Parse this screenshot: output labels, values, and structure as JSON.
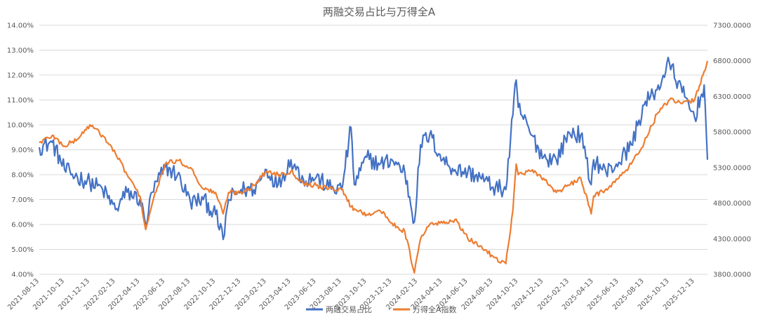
{
  "chart_data": {
    "type": "line",
    "title": "两融交易占比与万得全A",
    "x_tick_labels": [
      "2021-08-13",
      "2021-10-13",
      "2021-12-13",
      "2022-02-13",
      "2022-04-13",
      "2022-06-13",
      "2022-08-13",
      "2022-10-13",
      "2022-12-13",
      "2023-02-13",
      "2023-04-13",
      "2023-06-13",
      "2023-08-13",
      "2023-10-13",
      "2023-12-13",
      "2024-02-13",
      "2024-04-13",
      "2024-06-13",
      "2024-08-13",
      "2024-10-13",
      "2024-12-13",
      "2025-02-13",
      "2025-04-13",
      "2025-06-13",
      "2025-08-13",
      "2025-10-13",
      "2025-12-13"
    ],
    "y_left": {
      "ticks": [
        "4.00%",
        "5.00%",
        "6.00%",
        "7.00%",
        "8.00%",
        "9.00%",
        "10.00%",
        "11.00%",
        "12.00%",
        "13.00%",
        "14.00%"
      ],
      "ylim": [
        4,
        14
      ],
      "unit": "%"
    },
    "y_right": {
      "ticks": [
        "3800.0000",
        "4300.0000",
        "4800.0000",
        "5300.0000",
        "5800.0000",
        "6300.0000",
        "6800.0000",
        "7300.0000"
      ],
      "ylim": [
        3800,
        7300
      ]
    },
    "grid": true,
    "legend_position": "bottom",
    "series": [
      {
        "name": "两融交易占比",
        "axis": "left",
        "color": "#4472C4",
        "x": [
          "2021-08-13",
          "2021-09-13",
          "2021-10-13",
          "2021-11-13",
          "2021-12-13",
          "2022-01-13",
          "2022-02-13",
          "2022-03-13",
          "2022-04-13",
          "2022-04-27",
          "2022-05-13",
          "2022-06-13",
          "2022-07-13",
          "2022-08-13",
          "2022-09-13",
          "2022-10-13",
          "2022-10-31",
          "2022-11-13",
          "2022-12-13",
          "2023-01-13",
          "2023-02-13",
          "2023-03-13",
          "2023-04-13",
          "2023-05-13",
          "2023-06-13",
          "2023-07-13",
          "2023-08-13",
          "2023-09-05",
          "2023-09-13",
          "2023-10-13",
          "2023-11-13",
          "2023-12-13",
          "2024-01-13",
          "2024-02-05",
          "2024-02-20",
          "2024-03-13",
          "2024-04-13",
          "2024-05-13",
          "2024-06-13",
          "2024-07-13",
          "2024-08-13",
          "2024-09-13",
          "2024-09-30",
          "2024-10-08",
          "2024-10-13",
          "2024-11-13",
          "2024-12-13",
          "2025-01-13",
          "2025-02-13",
          "2025-03-13",
          "2025-04-07",
          "2025-04-13",
          "2025-05-13",
          "2025-06-13",
          "2025-07-13",
          "2025-08-13",
          "2025-09-13",
          "2025-10-13",
          "2025-11-13",
          "2025-12-13",
          "2026-01-05",
          "2026-01-13"
        ],
        "y": [
          9.1,
          9.3,
          8.2,
          7.9,
          7.7,
          7.4,
          6.6,
          7.3,
          7.0,
          6.0,
          7.3,
          8.3,
          8.0,
          6.9,
          7.0,
          6.4,
          5.4,
          7.0,
          7.4,
          7.4,
          8.2,
          7.6,
          8.6,
          7.8,
          7.9,
          7.5,
          7.4,
          9.9,
          7.6,
          8.7,
          8.4,
          8.6,
          8.1,
          6.1,
          9.2,
          9.6,
          8.6,
          8.2,
          8.1,
          7.9,
          7.5,
          7.4,
          10.4,
          11.8,
          10.7,
          9.6,
          8.7,
          8.6,
          9.7,
          9.6,
          7.6,
          8.6,
          8.1,
          8.5,
          9.2,
          10.8,
          11.4,
          12.5,
          11.3,
          10.3,
          11.6,
          8.6
        ]
      },
      {
        "name": "万得全A指数",
        "axis": "right",
        "color": "#ED7D31",
        "x": [
          "2021-08-13",
          "2021-09-13",
          "2021-10-13",
          "2021-11-13",
          "2021-12-13",
          "2022-01-13",
          "2022-02-13",
          "2022-03-13",
          "2022-04-13",
          "2022-04-27",
          "2022-05-13",
          "2022-06-13",
          "2022-07-13",
          "2022-08-13",
          "2022-09-13",
          "2022-10-13",
          "2022-10-31",
          "2022-11-13",
          "2022-12-13",
          "2023-01-13",
          "2023-02-13",
          "2023-03-13",
          "2023-04-13",
          "2023-05-13",
          "2023-06-13",
          "2023-07-13",
          "2023-08-13",
          "2023-09-05",
          "2023-09-13",
          "2023-10-13",
          "2023-11-13",
          "2023-12-13",
          "2024-01-13",
          "2024-02-05",
          "2024-02-20",
          "2024-03-13",
          "2024-04-13",
          "2024-05-13",
          "2024-06-13",
          "2024-07-13",
          "2024-08-13",
          "2024-09-13",
          "2024-09-30",
          "2024-10-08",
          "2024-10-13",
          "2024-11-13",
          "2024-12-13",
          "2025-01-13",
          "2025-02-13",
          "2025-03-13",
          "2025-04-07",
          "2025-04-13",
          "2025-05-13",
          "2025-06-13",
          "2025-07-13",
          "2025-08-13",
          "2025-09-13",
          "2025-10-13",
          "2025-11-13",
          "2025-12-13",
          "2026-01-05",
          "2026-01-13"
        ],
        "y": [
          5650,
          5750,
          5600,
          5700,
          5900,
          5750,
          5500,
          5200,
          4900,
          4430,
          4800,
          5350,
          5400,
          5300,
          5000,
          4950,
          4650,
          4950,
          4950,
          5050,
          5250,
          5200,
          5250,
          5080,
          5050,
          5000,
          5000,
          4750,
          4720,
          4640,
          4700,
          4520,
          4400,
          3820,
          4300,
          4500,
          4520,
          4570,
          4300,
          4200,
          4050,
          3950,
          4700,
          5350,
          5200,
          5250,
          5150,
          4950,
          5050,
          5150,
          4650,
          4900,
          5000,
          5150,
          5350,
          5650,
          6050,
          6250,
          6200,
          6250,
          6650,
          6800
        ]
      }
    ]
  }
}
